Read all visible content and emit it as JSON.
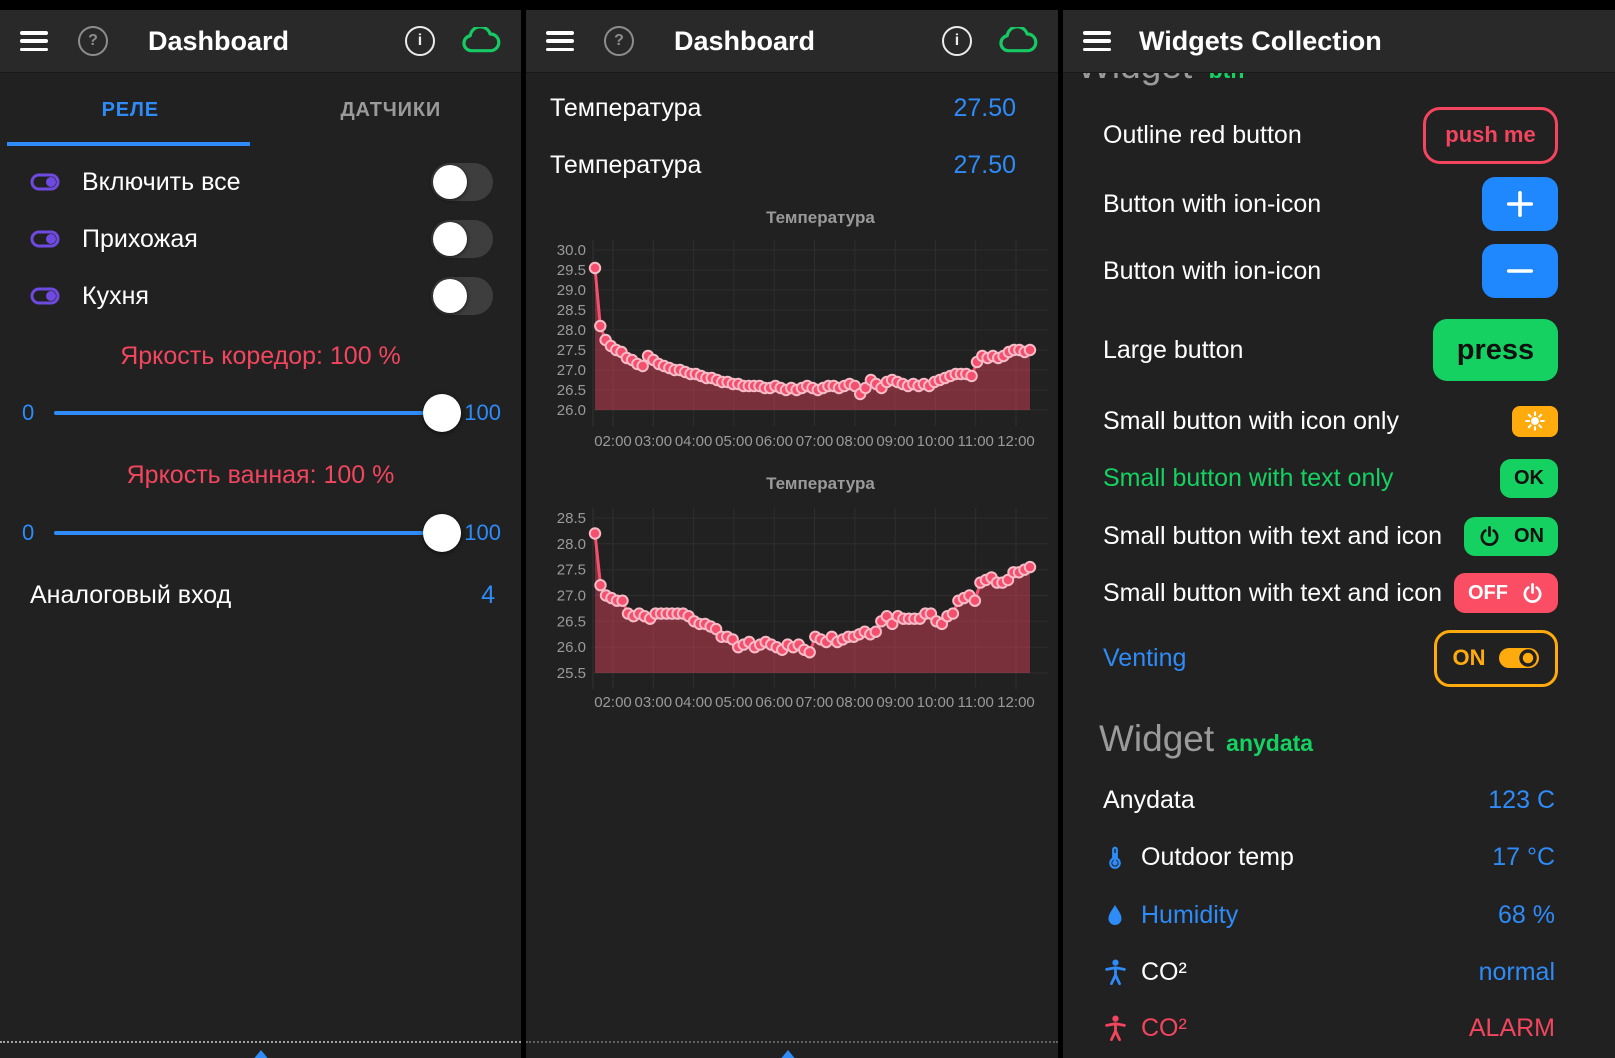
{
  "colors": {
    "blue": "#2e8bf7",
    "blue_button": "#2088ff",
    "green": "#15d162",
    "red": "#f2455e",
    "red_button": "#fb4d64",
    "orange": "#ffab0e",
    "purple": "#6f4ae0",
    "gray_text": "#9a9a9a",
    "chart_line": "#f4506e"
  },
  "glyphs": {
    "help": "?",
    "info": "i"
  },
  "left_panel": {
    "header": {
      "title": "Dashboard"
    },
    "tabs": [
      {
        "label": "РЕЛЕ",
        "active": true
      },
      {
        "label": "ДАТЧИКИ",
        "active": false
      }
    ],
    "switch_rows": [
      {
        "label": "Включить все",
        "state": "off"
      },
      {
        "label": "Прихожая",
        "state": "off"
      },
      {
        "label": "Кухня",
        "state": "off"
      }
    ],
    "sliders": [
      {
        "label": "Яркость коредор: 100 %",
        "min": "0",
        "max": "100",
        "value": 100
      },
      {
        "label": "Яркость ванная: 100 %",
        "min": "0",
        "max": "100",
        "value": 100
      }
    ],
    "analog_row": {
      "label": "Аналоговый вход",
      "value": "4"
    }
  },
  "middle_panel": {
    "header": {
      "title": "Dashboard"
    },
    "value_rows": [
      {
        "label": "Температура",
        "value": "27.50"
      },
      {
        "label": "Температура",
        "value": "27.50"
      }
    ]
  },
  "right_panel": {
    "header": {
      "title": "Widgets Collection"
    },
    "clipped_heading": {
      "title": "Widget",
      "subtitle": "btn"
    },
    "button_rows": [
      {
        "label": "Outline red button",
        "label_color": "white",
        "button": {
          "style": "outline-red",
          "text": "push me"
        }
      },
      {
        "label": "Button with ion-icon",
        "label_color": "white",
        "button": {
          "style": "blue-sq",
          "icon": "plus"
        }
      },
      {
        "label": "Button with ion-icon",
        "label_color": "white",
        "button": {
          "style": "blue-sq",
          "icon": "minus"
        }
      },
      {
        "label": "Large button",
        "label_color": "white",
        "button": {
          "style": "green-lg",
          "text": "press"
        }
      },
      {
        "label": "Small button with icon only",
        "label_color": "white",
        "button": {
          "style": "orange-sm",
          "icon": "sun"
        }
      },
      {
        "label": "Small button with text only",
        "label_color": "green",
        "button": {
          "style": "green-sm",
          "text": "OK"
        }
      },
      {
        "label": "Small button with text and icon",
        "label_color": "white",
        "button": {
          "style": "green-sm",
          "icon": "power",
          "text": "ON"
        }
      },
      {
        "label": "Small button with text and icon",
        "label_color": "white",
        "button": {
          "style": "red-sm",
          "text": "OFF",
          "icon": "power",
          "icon_after": true
        }
      },
      {
        "label": "Venting",
        "label_color": "blue",
        "button": {
          "style": "outline-orange",
          "text": "ON",
          "icon": "toggle-on",
          "icon_after": true
        }
      }
    ],
    "section_heading": {
      "title": "Widget",
      "subtitle": "anydata"
    },
    "data_rows": [
      {
        "icon": null,
        "label": "Anydata",
        "label_color": "white",
        "value": "123 C",
        "value_color": "blue"
      },
      {
        "icon": "thermometer",
        "label": "Outdoor temp",
        "label_color": "white",
        "value": "17 °C",
        "value_color": "blue"
      },
      {
        "icon": "droplet",
        "label": "Humidity",
        "label_color": "blue",
        "value": "68 %",
        "value_color": "blue"
      },
      {
        "icon": "person",
        "label": "CO²",
        "label_color": "white",
        "value": "normal",
        "value_color": "blue"
      },
      {
        "icon": "person-red",
        "label": "CO²",
        "label_color": "red",
        "value": "ALARM",
        "value_color": "red"
      }
    ]
  },
  "chart_data": [
    {
      "type": "area",
      "title": "Температура",
      "ylabel": "",
      "xlabel": "",
      "ylim": [
        26.0,
        30.0
      ],
      "y_ticks": [
        "30.0",
        "29.5",
        "29.0",
        "28.5",
        "28.0",
        "27.5",
        "27.0",
        "26.5",
        "26.0"
      ],
      "x_ticks": [
        "02:00",
        "03:00",
        "04:00",
        "05:00",
        "06:00",
        "07:00",
        "08:00",
        "09:00",
        "10:00",
        "11:00",
        "12:00"
      ],
      "x_range_hours": [
        1.55,
        12.35
      ],
      "legend": "none",
      "grid": true,
      "values": [
        29.55,
        28.1,
        27.75,
        27.6,
        27.5,
        27.45,
        27.3,
        27.25,
        27.15,
        27.1,
        27.35,
        27.25,
        27.15,
        27.1,
        27.05,
        27.0,
        27.0,
        26.95,
        26.9,
        26.9,
        26.85,
        26.8,
        26.8,
        26.75,
        26.7,
        26.7,
        26.65,
        26.65,
        26.6,
        26.6,
        26.6,
        26.6,
        26.55,
        26.55,
        26.6,
        26.55,
        26.5,
        26.55,
        26.5,
        26.55,
        26.6,
        26.55,
        26.5,
        26.55,
        26.6,
        26.6,
        26.55,
        26.6,
        26.65,
        26.6,
        26.4,
        26.55,
        26.75,
        26.65,
        26.55,
        26.7,
        26.75,
        26.7,
        26.65,
        26.6,
        26.65,
        26.6,
        26.65,
        26.6,
        26.7,
        26.75,
        26.8,
        26.85,
        26.9,
        26.9,
        26.9,
        26.85,
        27.2,
        27.35,
        27.3,
        27.35,
        27.3,
        27.35,
        27.45,
        27.5,
        27.5,
        27.45,
        27.5
      ]
    },
    {
      "type": "area",
      "title": "Температура",
      "ylabel": "",
      "xlabel": "",
      "ylim": [
        25.5,
        28.5
      ],
      "y_ticks": [
        "28.5",
        "28.0",
        "27.5",
        "27.0",
        "26.5",
        "26.0",
        "25.5"
      ],
      "x_ticks": [
        "02:00",
        "03:00",
        "04:00",
        "05:00",
        "06:00",
        "07:00",
        "08:00",
        "09:00",
        "10:00",
        "11:00",
        "12:00"
      ],
      "x_range_hours": [
        1.55,
        12.35
      ],
      "legend": "none",
      "grid": true,
      "values": [
        28.2,
        27.2,
        27.0,
        26.95,
        26.9,
        26.9,
        26.65,
        26.6,
        26.65,
        26.6,
        26.55,
        26.65,
        26.65,
        26.65,
        26.65,
        26.65,
        26.65,
        26.6,
        26.5,
        26.45,
        26.45,
        26.4,
        26.35,
        26.2,
        26.2,
        26.15,
        26.0,
        26.05,
        26.1,
        26.0,
        26.05,
        26.1,
        26.05,
        26.0,
        25.95,
        26.05,
        26.0,
        26.05,
        25.95,
        25.9,
        26.2,
        26.15,
        26.1,
        26.2,
        26.1,
        26.15,
        26.2,
        26.2,
        26.25,
        26.3,
        26.25,
        26.3,
        26.5,
        26.6,
        26.45,
        26.6,
        26.55,
        26.55,
        26.55,
        26.55,
        26.65,
        26.65,
        26.5,
        26.45,
        26.6,
        26.65,
        26.9,
        26.95,
        27.0,
        26.9,
        27.25,
        27.3,
        27.35,
        27.25,
        27.25,
        27.3,
        27.45,
        27.45,
        27.5,
        27.55
      ]
    }
  ]
}
